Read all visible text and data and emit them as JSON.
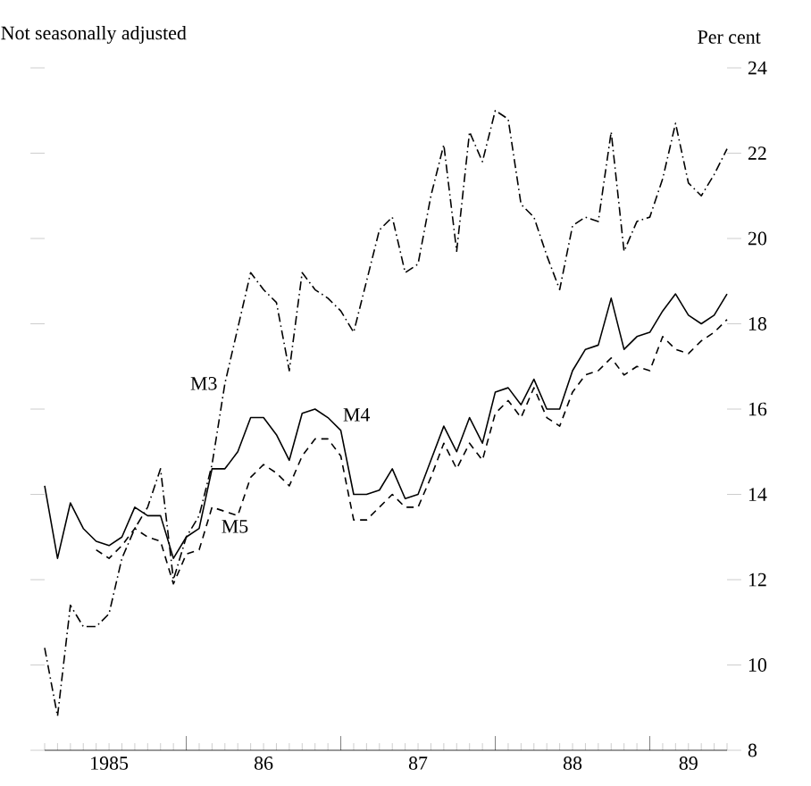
{
  "chart_data": {
    "type": "line",
    "subtitle": "Not seasonally adjusted",
    "ylabel": "Per cent",
    "x": [
      "1985-02",
      "1985-03",
      "1985-04",
      "1985-05",
      "1985-06",
      "1985-07",
      "1985-08",
      "1985-09",
      "1985-10",
      "1985-11",
      "1985-12",
      "1986-01",
      "1986-02",
      "1986-03",
      "1986-04",
      "1986-05",
      "1986-06",
      "1986-07",
      "1986-08",
      "1986-09",
      "1986-10",
      "1986-11",
      "1986-12",
      "1987-01",
      "1987-02",
      "1987-03",
      "1987-04",
      "1987-05",
      "1987-06",
      "1987-07",
      "1987-08",
      "1987-09",
      "1987-10",
      "1987-11",
      "1987-12",
      "1988-01",
      "1988-02",
      "1988-03",
      "1988-04",
      "1988-05",
      "1988-06",
      "1988-07",
      "1988-08",
      "1988-09",
      "1988-10",
      "1988-11",
      "1988-12",
      "1989-01",
      "1989-02",
      "1989-03",
      "1989-04",
      "1989-05",
      "1989-06",
      "1989-07"
    ],
    "series": [
      {
        "name": "M3",
        "color": "#000000",
        "line_style": "dashdot",
        "values": [
          10.4,
          8.8,
          11.4,
          10.9,
          10.9,
          11.2,
          12.5,
          13.2,
          13.7,
          14.6,
          12.0,
          13.0,
          13.5,
          14.7,
          16.6,
          17.9,
          19.2,
          18.8,
          18.5,
          16.9,
          19.2,
          18.8,
          18.6,
          18.3,
          17.8,
          19.0,
          20.2,
          20.5,
          19.2,
          19.4,
          21.0,
          22.2,
          19.7,
          22.5,
          21.8,
          23.0,
          22.8,
          20.8,
          20.5,
          19.6,
          18.8,
          20.3,
          20.5,
          20.4,
          22.5,
          19.7,
          20.4,
          20.5,
          21.4,
          22.7,
          21.3,
          21.0,
          21.5,
          22.1
        ]
      },
      {
        "name": "M4",
        "color": "#000000",
        "line_style": "solid",
        "values": [
          14.2,
          12.5,
          13.8,
          13.2,
          12.9,
          12.8,
          13.0,
          13.7,
          13.5,
          13.5,
          12.5,
          13.0,
          13.2,
          14.6,
          14.6,
          15.0,
          15.8,
          15.8,
          15.4,
          14.8,
          15.9,
          16.0,
          15.8,
          15.5,
          14.0,
          14.0,
          14.1,
          14.6,
          13.9,
          14.0,
          14.8,
          15.6,
          15.0,
          15.8,
          15.2,
          16.4,
          16.5,
          16.1,
          16.7,
          16.0,
          16.0,
          16.9,
          17.4,
          17.5,
          18.6,
          17.4,
          17.7,
          17.8,
          18.3,
          18.7,
          18.2,
          18.0,
          18.2,
          18.7
        ]
      },
      {
        "name": "M5",
        "color": "#000000",
        "line_style": "dashed",
        "values": [
          null,
          null,
          null,
          null,
          12.7,
          12.5,
          12.8,
          13.2,
          13.0,
          12.9,
          11.9,
          12.6,
          12.7,
          13.7,
          13.6,
          13.5,
          14.4,
          14.7,
          14.5,
          14.2,
          14.9,
          15.3,
          15.3,
          14.9,
          13.4,
          13.4,
          13.7,
          14.0,
          13.7,
          13.7,
          14.4,
          15.2,
          14.6,
          15.2,
          14.8,
          15.9,
          16.2,
          15.8,
          16.5,
          15.8,
          15.6,
          16.4,
          16.8,
          16.9,
          17.2,
          16.8,
          17.0,
          16.9,
          17.7,
          17.4,
          17.3,
          17.6,
          17.8,
          18.1
        ]
      }
    ],
    "xlim": [
      "1985-02",
      "1989-07"
    ],
    "xticks": [
      {
        "value": "1985-07",
        "label": "1985"
      },
      {
        "value": "1986-01",
        "label": null
      },
      {
        "value": "1986-07",
        "label": "86"
      },
      {
        "value": "1987-01",
        "label": null
      },
      {
        "value": "1987-07",
        "label": "87"
      },
      {
        "value": "1988-01",
        "label": null
      },
      {
        "value": "1988-07",
        "label": "88"
      },
      {
        "value": "1989-01",
        "label": null
      },
      {
        "value": "1989-04",
        "label": "89"
      }
    ],
    "ylim": [
      8,
      24
    ],
    "yticks": [
      8,
      10,
      12,
      14,
      16,
      18,
      20,
      22,
      24
    ],
    "grid": false,
    "legend": false
  }
}
